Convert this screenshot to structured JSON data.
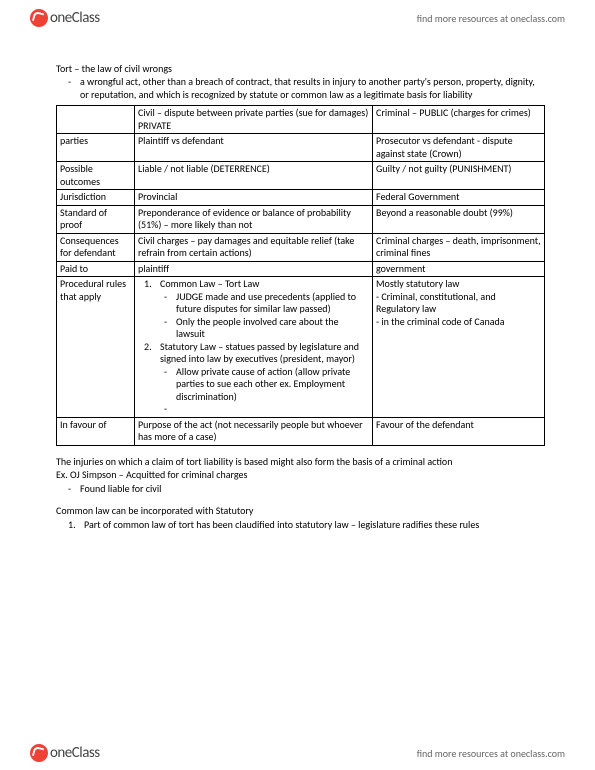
{
  "brand": {
    "part1": "one",
    "part2": "Class"
  },
  "findMore": "find more resources at oneclass.com",
  "title": "Tort – the law of civil wrongs",
  "definition": "a wrongful act, other than a breach of contract, that results in injury to another party's person, property, dignity, or reputation, and which is recognized by statute or common law as a legitimate basis for liability",
  "table": {
    "r0": {
      "c1": "",
      "c2": "Civil – dispute between private parties (sue for damages) PRIVATE",
      "c3": "Criminal – PUBLIC (charges for crimes)"
    },
    "r1": {
      "c1": "parties",
      "c2": "Plaintiff vs defendant",
      "c3": "Prosecutor vs defendant - dispute against state (Crown)"
    },
    "r2": {
      "c1": "Possible outcomes",
      "c2": "Liable / not liable (DETERRENCE)",
      "c3": "Guilty / not guilty (PUNISHMENT)"
    },
    "r3": {
      "c1": "Jurisdiction",
      "c2": "Provincial",
      "c3": "Federal Government"
    },
    "r4": {
      "c1": "Standard of proof",
      "c2": "Preponderance of evidence or balance of probability (51%) – more likely than not",
      "c3": "Beyond a reasonable doubt (99%)"
    },
    "r5": {
      "c1": "Consequences for defendant",
      "c2": "Civil charges – pay damages and equitable relief (take refrain from certain actions)",
      "c3": "Criminal charges – death, imprisonment, criminal fines"
    },
    "r6": {
      "c1": "Paid to",
      "c2": "plaintiff",
      "c3": "government"
    },
    "r7": {
      "c1": "Procedural rules that apply",
      "c2": {
        "n1": "Common Law – Tort Law",
        "s1": "JUDGE made and use precedents (applied to future disputes for similar law passed)",
        "s2": "Only the people involved care about the lawsuit",
        "n2": "Statutory Law – statues passed by legislature and signed into law by executives (president, mayor)",
        "s3": "Allow private cause of action (allow private parties to sue each other ex. Employment discrimination)"
      },
      "c3": {
        "l1": "Mostly statutory law",
        "l2": "- Criminal, constitutional, and Regulatory law",
        "l3": "- in the criminal code of Canada"
      }
    },
    "r8": {
      "c1": "In favour of",
      "c2": "Purpose of the act (not necessarily people but whoever has more of a case)",
      "c3": "Favour of the defendant"
    }
  },
  "p1": "The injuries on which a claim of tort liability is based might also form the basis of a criminal action",
  "p2": "Ex. OJ Simpson – Acquitted for criminal charges",
  "p2sub": "Found liable for civil",
  "p3": "Common law can be incorporated with Statutory",
  "p3n1": "Part of common law of tort has been claudified into statutory law – legislature radifies these rules",
  "num": {
    "one": "1.",
    "two": "2."
  }
}
